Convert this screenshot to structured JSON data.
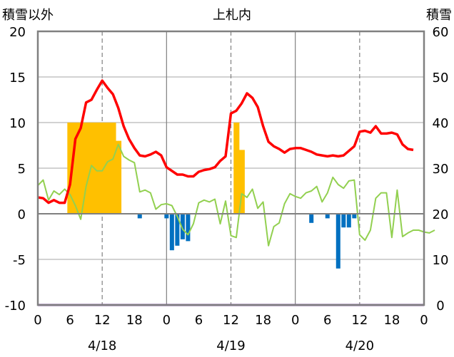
{
  "chart_data": {
    "type": "line",
    "title": "上札内",
    "left_axis_label": "積雪以外",
    "right_axis_label": "積雪",
    "left_ylim": [
      -10,
      20
    ],
    "left_ticks": [
      "20",
      "15",
      "10",
      "5",
      "0",
      "-5",
      "-10"
    ],
    "right_ylim": [
      0,
      60
    ],
    "right_ticks": [
      "60",
      "50",
      "40",
      "30",
      "20",
      "10",
      "0"
    ],
    "x_range_hours": [
      0,
      72
    ],
    "x_ticks": [
      "0",
      "6",
      "12",
      "18",
      "0",
      "6",
      "12",
      "18",
      "0",
      "6",
      "12",
      "18",
      "0"
    ],
    "date_labels": [
      "4/18",
      "4/19",
      "4/20"
    ],
    "grid": true,
    "colors": {
      "temperature": "#ff0000",
      "wind": "#92d050",
      "snowfall": "#ffc000",
      "precipitation": "#0070c0",
      "snow_depth": "#7030a0",
      "frame": "#808080"
    },
    "temperature": [
      1.8,
      1.7,
      1.2,
      1.5,
      1.2,
      1.2,
      3.2,
      8.2,
      9.4,
      12.2,
      12.5,
      13.6,
      14.6,
      13.8,
      13.1,
      11.6,
      9.6,
      8.2,
      7.2,
      6.4,
      6.3,
      6.5,
      6.8,
      6.4,
      5.1,
      4.7,
      4.3,
      4.3,
      4.1,
      4.1,
      4.6,
      4.8,
      4.9,
      5.1,
      5.8,
      6.3,
      11.0,
      11.3,
      12.1,
      13.2,
      12.7,
      11.7,
      9.6,
      7.9,
      7.4,
      7.1,
      6.7,
      7.1,
      7.2,
      7.2,
      7.0,
      6.8,
      6.5,
      6.4,
      6.3,
      6.4,
      6.3,
      6.4,
      6.9,
      7.4,
      9.0,
      9.1,
      8.9,
      9.6,
      8.8,
      8.8,
      8.9,
      8.7,
      7.6,
      7.1,
      7.0
    ],
    "wind": [
      3.1,
      3.7,
      1.5,
      2.5,
      2.1,
      2.7,
      2.1,
      0.9,
      -0.6,
      3.0,
      5.3,
      4.7,
      4.7,
      5.7,
      6.0,
      7.6,
      6.3,
      5.9,
      5.6,
      2.4,
      2.6,
      2.3,
      0.5,
      1.0,
      1.1,
      0.9,
      -0.3,
      -1.7,
      -2.3,
      -1.1,
      1.2,
      1.5,
      1.3,
      1.6,
      -1.1,
      1.4,
      -2.4,
      -2.6,
      2.2,
      1.8,
      2.7,
      0.6,
      1.3,
      -3.5,
      -1.4,
      -1.0,
      1.1,
      2.2,
      1.9,
      1.7,
      2.3,
      2.5,
      3.0,
      1.3,
      2.3,
      4.0,
      3.2,
      2.8,
      3.6,
      3.7,
      -2.3,
      -2.9,
      -1.8,
      1.7,
      2.3,
      2.3,
      -2.6,
      2.6,
      -2.5,
      -2.1,
      -1.8,
      -1.8,
      -2.0,
      -2.1,
      -1.8
    ],
    "snowfall": [
      {
        "h": 6,
        "v": 10
      },
      {
        "h": 7,
        "v": 10
      },
      {
        "h": 8,
        "v": 10
      },
      {
        "h": 9,
        "v": 10
      },
      {
        "h": 10,
        "v": 10
      },
      {
        "h": 11,
        "v": 10
      },
      {
        "h": 12,
        "v": 10
      },
      {
        "h": 13,
        "v": 10
      },
      {
        "h": 14,
        "v": 10
      },
      {
        "h": 15,
        "v": 8
      },
      {
        "h": 37,
        "v": 10
      },
      {
        "h": 38,
        "v": 7
      }
    ],
    "precipitation": [
      {
        "h": 19,
        "v": -0.5
      },
      {
        "h": 24,
        "v": -0.5
      },
      {
        "h": 25,
        "v": -4
      },
      {
        "h": 26,
        "v": -3.5
      },
      {
        "h": 27,
        "v": -2.8
      },
      {
        "h": 28,
        "v": -3
      },
      {
        "h": 51,
        "v": -1
      },
      {
        "h": 54,
        "v": -0.5
      },
      {
        "h": 56,
        "v": -6
      },
      {
        "h": 57,
        "v": -1.5
      },
      {
        "h": 58,
        "v": -1.5
      },
      {
        "h": 59,
        "v": -0.5
      }
    ],
    "snow_depth": [
      0,
      0,
      0,
      0,
      0,
      0,
      0,
      0,
      0,
      0,
      0,
      0,
      0,
      0,
      0,
      0,
      0,
      0,
      0,
      0,
      0,
      0,
      0,
      0,
      0,
      0,
      0,
      0,
      0,
      0,
      0,
      0,
      0,
      0,
      0,
      0,
      0,
      0,
      0,
      0,
      0,
      0,
      0,
      0,
      0,
      0,
      0,
      0,
      0,
      0,
      0,
      0,
      0,
      0,
      0,
      0,
      0,
      0,
      0,
      0,
      0,
      0,
      0,
      0,
      0,
      0,
      0,
      0,
      0,
      0,
      0,
      0,
      0
    ]
  }
}
